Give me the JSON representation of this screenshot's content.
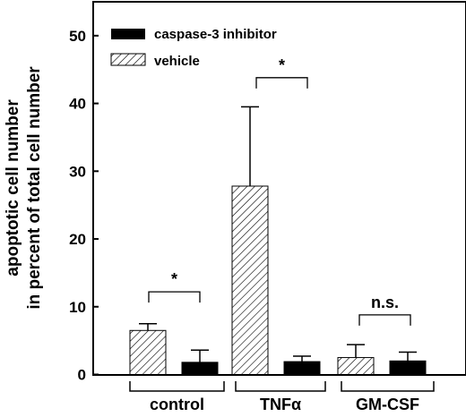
{
  "chart_data": {
    "type": "bar",
    "categories": [
      "control",
      "TNFα",
      "GM-CSF"
    ],
    "series": [
      {
        "name": "vehicle",
        "pattern": "hatched",
        "values": [
          6.5,
          27.8,
          2.5
        ],
        "errors": [
          1.0,
          11.7,
          1.9
        ]
      },
      {
        "name": "caspase-3 inhibitor",
        "pattern": "solid",
        "color": "#000000",
        "values": [
          1.8,
          1.9,
          2.0
        ],
        "errors": [
          1.8,
          0.8,
          1.3
        ]
      }
    ],
    "ylabel_line1": "apoptotic cell number",
    "ylabel_line2": "in percent of total cell number",
    "ylim": [
      0,
      55
    ],
    "yticks": [
      0,
      10,
      20,
      30,
      40,
      50
    ],
    "legend_position": "top-left",
    "significance": [
      "*",
      "*",
      "n.s."
    ]
  }
}
